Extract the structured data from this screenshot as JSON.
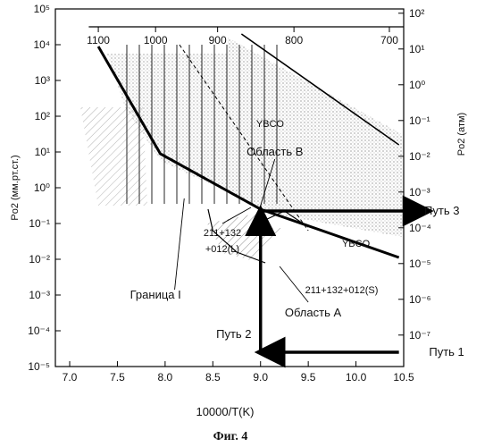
{
  "chart_data": {
    "type": "line",
    "caption": "Фиг. 4",
    "xlabel": "10000/T(K)",
    "ylabel_left": "Po2 (мм.рт.ст.)",
    "ylabel_right": "Po2 (атм)",
    "x_ticks": [
      "7.0",
      "7.5",
      "8.0",
      "8.5",
      "9.0",
      "9.5",
      "10.0",
      "10.5"
    ],
    "x_range": [
      6.85,
      10.5
    ],
    "y_left_ticks": [
      "10⁵",
      "10⁴",
      "10³",
      "10²",
      "10¹",
      "10⁰",
      "10⁻¹",
      "10⁻²",
      "10⁻³",
      "10⁻⁴",
      "10⁻⁵"
    ],
    "y_left_range": [
      -5,
      5
    ],
    "y_right_ticks": [
      "10²",
      "10¹",
      "10⁰",
      "10⁻¹",
      "10⁻²",
      "10⁻³",
      "10⁻⁴",
      "10⁻⁵",
      "10⁻⁶",
      "10⁻⁷"
    ],
    "top_axis_ticks": [
      {
        "label": "1100",
        "x": 7.3
      },
      {
        "label": "1000",
        "x": 7.9
      },
      {
        "label": "900",
        "x": 8.55
      },
      {
        "label": "800",
        "x": 9.35
      },
      {
        "label": "700",
        "x": 10.35
      }
    ],
    "boundary_upper": [
      [
        7.3,
        3.95
      ],
      [
        7.95,
        0.95
      ],
      [
        9.0,
        -0.6
      ],
      [
        10.45,
        -1.95
      ]
    ],
    "boundary_ybco_top": [
      [
        8.8,
        4.3
      ],
      [
        10.45,
        1.2
      ]
    ],
    "dashed_line": [
      [
        8.15,
        4.0
      ],
      [
        9.5,
        -1.2
      ]
    ],
    "region_a_curve_left": [
      [
        8.45,
        -0.6
      ],
      [
        8.5,
        -1.2
      ],
      [
        8.75,
        -1.8
      ],
      [
        9.05,
        -2.1
      ]
    ],
    "region_a_curve_right": [
      [
        9.05,
        -0.9
      ],
      [
        9.25,
        -0.65
      ],
      [
        9.5,
        -1.1
      ]
    ],
    "paths": [
      {
        "name": "Путь 1",
        "from": [
          10.45,
          -4.6
        ],
        "to": [
          9.0,
          -4.6
        ]
      },
      {
        "name": "Путь 2",
        "from": [
          9.0,
          -4.6
        ],
        "to": [
          9.0,
          -0.65
        ]
      },
      {
        "name": "Путь 3",
        "from": [
          9.0,
          -0.65
        ],
        "to": [
          10.75,
          -0.65
        ]
      }
    ],
    "annotations": [
      {
        "text": "YBCO",
        "x": 9.1,
        "y": 1.8
      },
      {
        "text": "YBCO",
        "x": 10.0,
        "y": -1.55
      },
      {
        "text": "Область B",
        "x": 9.15,
        "y": 1.0
      },
      {
        "text": "211+132",
        "x": 8.6,
        "y": -1.25
      },
      {
        "text": "+012(L)",
        "x": 8.6,
        "y": -1.7
      },
      {
        "text": "211+132+012(S)",
        "x": 9.85,
        "y": -2.85
      },
      {
        "text": "Граница I",
        "x": 7.9,
        "y": -3.0
      },
      {
        "text": "Область A",
        "x": 9.55,
        "y": -3.5
      },
      {
        "text": "Путь 2",
        "x": 8.72,
        "y": -4.1
      },
      {
        "text": "Путь 1",
        "x": 10.95,
        "y": -4.6
      },
      {
        "text": "Путь 3",
        "x": 10.9,
        "y": -0.65
      }
    ]
  }
}
